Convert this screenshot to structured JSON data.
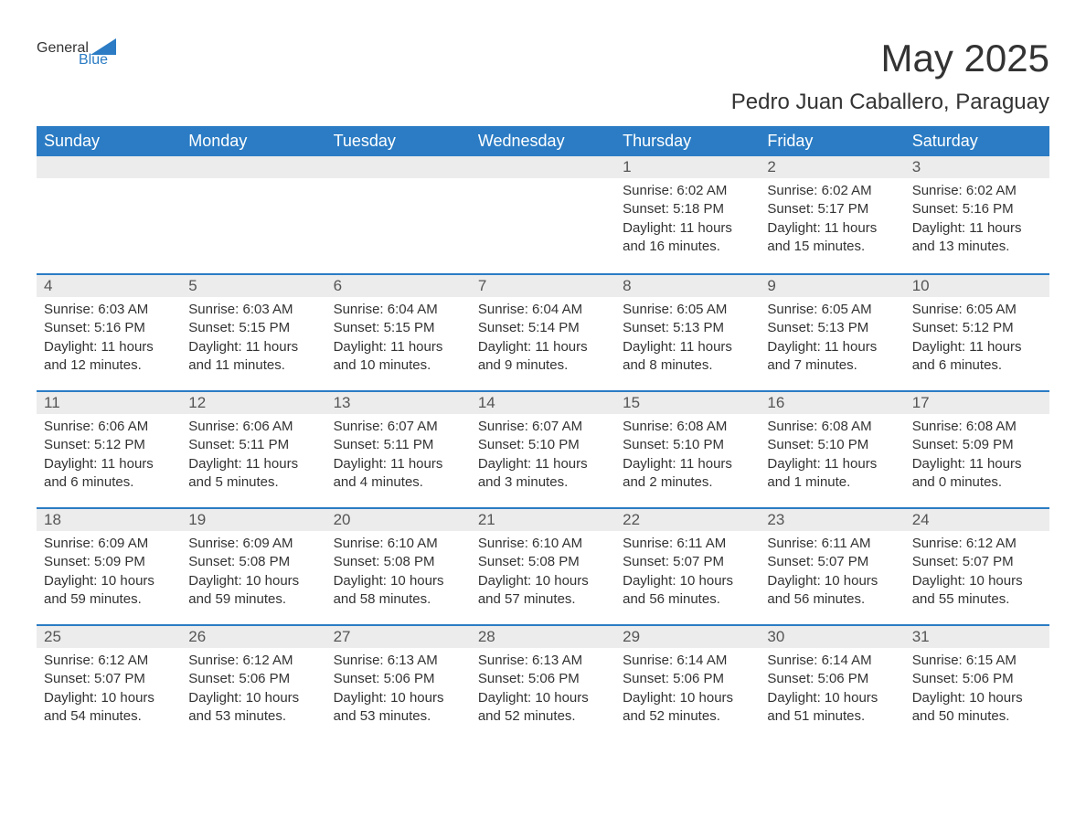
{
  "logo": {
    "text1": "General",
    "text2": "Blue"
  },
  "title": "May 2025",
  "location": "Pedro Juan Caballero, Paraguay",
  "colors": {
    "header_bg": "#2b7cc4",
    "header_text": "#ffffff",
    "daynum_bg": "#ececec",
    "row_border": "#2b7cc4",
    "body_text": "#333333",
    "logo_blue": "#2b7cc4"
  },
  "weekdays": [
    "Sunday",
    "Monday",
    "Tuesday",
    "Wednesday",
    "Thursday",
    "Friday",
    "Saturday"
  ],
  "weeks": [
    [
      null,
      null,
      null,
      null,
      {
        "n": "1",
        "sunrise": "6:02 AM",
        "sunset": "5:18 PM",
        "dl": "11 hours and 16 minutes."
      },
      {
        "n": "2",
        "sunrise": "6:02 AM",
        "sunset": "5:17 PM",
        "dl": "11 hours and 15 minutes."
      },
      {
        "n": "3",
        "sunrise": "6:02 AM",
        "sunset": "5:16 PM",
        "dl": "11 hours and 13 minutes."
      }
    ],
    [
      {
        "n": "4",
        "sunrise": "6:03 AM",
        "sunset": "5:16 PM",
        "dl": "11 hours and 12 minutes."
      },
      {
        "n": "5",
        "sunrise": "6:03 AM",
        "sunset": "5:15 PM",
        "dl": "11 hours and 11 minutes."
      },
      {
        "n": "6",
        "sunrise": "6:04 AM",
        "sunset": "5:15 PM",
        "dl": "11 hours and 10 minutes."
      },
      {
        "n": "7",
        "sunrise": "6:04 AM",
        "sunset": "5:14 PM",
        "dl": "11 hours and 9 minutes."
      },
      {
        "n": "8",
        "sunrise": "6:05 AM",
        "sunset": "5:13 PM",
        "dl": "11 hours and 8 minutes."
      },
      {
        "n": "9",
        "sunrise": "6:05 AM",
        "sunset": "5:13 PM",
        "dl": "11 hours and 7 minutes."
      },
      {
        "n": "10",
        "sunrise": "6:05 AM",
        "sunset": "5:12 PM",
        "dl": "11 hours and 6 minutes."
      }
    ],
    [
      {
        "n": "11",
        "sunrise": "6:06 AM",
        "sunset": "5:12 PM",
        "dl": "11 hours and 6 minutes."
      },
      {
        "n": "12",
        "sunrise": "6:06 AM",
        "sunset": "5:11 PM",
        "dl": "11 hours and 5 minutes."
      },
      {
        "n": "13",
        "sunrise": "6:07 AM",
        "sunset": "5:11 PM",
        "dl": "11 hours and 4 minutes."
      },
      {
        "n": "14",
        "sunrise": "6:07 AM",
        "sunset": "5:10 PM",
        "dl": "11 hours and 3 minutes."
      },
      {
        "n": "15",
        "sunrise": "6:08 AM",
        "sunset": "5:10 PM",
        "dl": "11 hours and 2 minutes."
      },
      {
        "n": "16",
        "sunrise": "6:08 AM",
        "sunset": "5:10 PM",
        "dl": "11 hours and 1 minute."
      },
      {
        "n": "17",
        "sunrise": "6:08 AM",
        "sunset": "5:09 PM",
        "dl": "11 hours and 0 minutes."
      }
    ],
    [
      {
        "n": "18",
        "sunrise": "6:09 AM",
        "sunset": "5:09 PM",
        "dl": "10 hours and 59 minutes."
      },
      {
        "n": "19",
        "sunrise": "6:09 AM",
        "sunset": "5:08 PM",
        "dl": "10 hours and 59 minutes."
      },
      {
        "n": "20",
        "sunrise": "6:10 AM",
        "sunset": "5:08 PM",
        "dl": "10 hours and 58 minutes."
      },
      {
        "n": "21",
        "sunrise": "6:10 AM",
        "sunset": "5:08 PM",
        "dl": "10 hours and 57 minutes."
      },
      {
        "n": "22",
        "sunrise": "6:11 AM",
        "sunset": "5:07 PM",
        "dl": "10 hours and 56 minutes."
      },
      {
        "n": "23",
        "sunrise": "6:11 AM",
        "sunset": "5:07 PM",
        "dl": "10 hours and 56 minutes."
      },
      {
        "n": "24",
        "sunrise": "6:12 AM",
        "sunset": "5:07 PM",
        "dl": "10 hours and 55 minutes."
      }
    ],
    [
      {
        "n": "25",
        "sunrise": "6:12 AM",
        "sunset": "5:07 PM",
        "dl": "10 hours and 54 minutes."
      },
      {
        "n": "26",
        "sunrise": "6:12 AM",
        "sunset": "5:06 PM",
        "dl": "10 hours and 53 minutes."
      },
      {
        "n": "27",
        "sunrise": "6:13 AM",
        "sunset": "5:06 PM",
        "dl": "10 hours and 53 minutes."
      },
      {
        "n": "28",
        "sunrise": "6:13 AM",
        "sunset": "5:06 PM",
        "dl": "10 hours and 52 minutes."
      },
      {
        "n": "29",
        "sunrise": "6:14 AM",
        "sunset": "5:06 PM",
        "dl": "10 hours and 52 minutes."
      },
      {
        "n": "30",
        "sunrise": "6:14 AM",
        "sunset": "5:06 PM",
        "dl": "10 hours and 51 minutes."
      },
      {
        "n": "31",
        "sunrise": "6:15 AM",
        "sunset": "5:06 PM",
        "dl": "10 hours and 50 minutes."
      }
    ]
  ],
  "labels": {
    "sunrise": "Sunrise:",
    "sunset": "Sunset:",
    "daylight": "Daylight:"
  }
}
